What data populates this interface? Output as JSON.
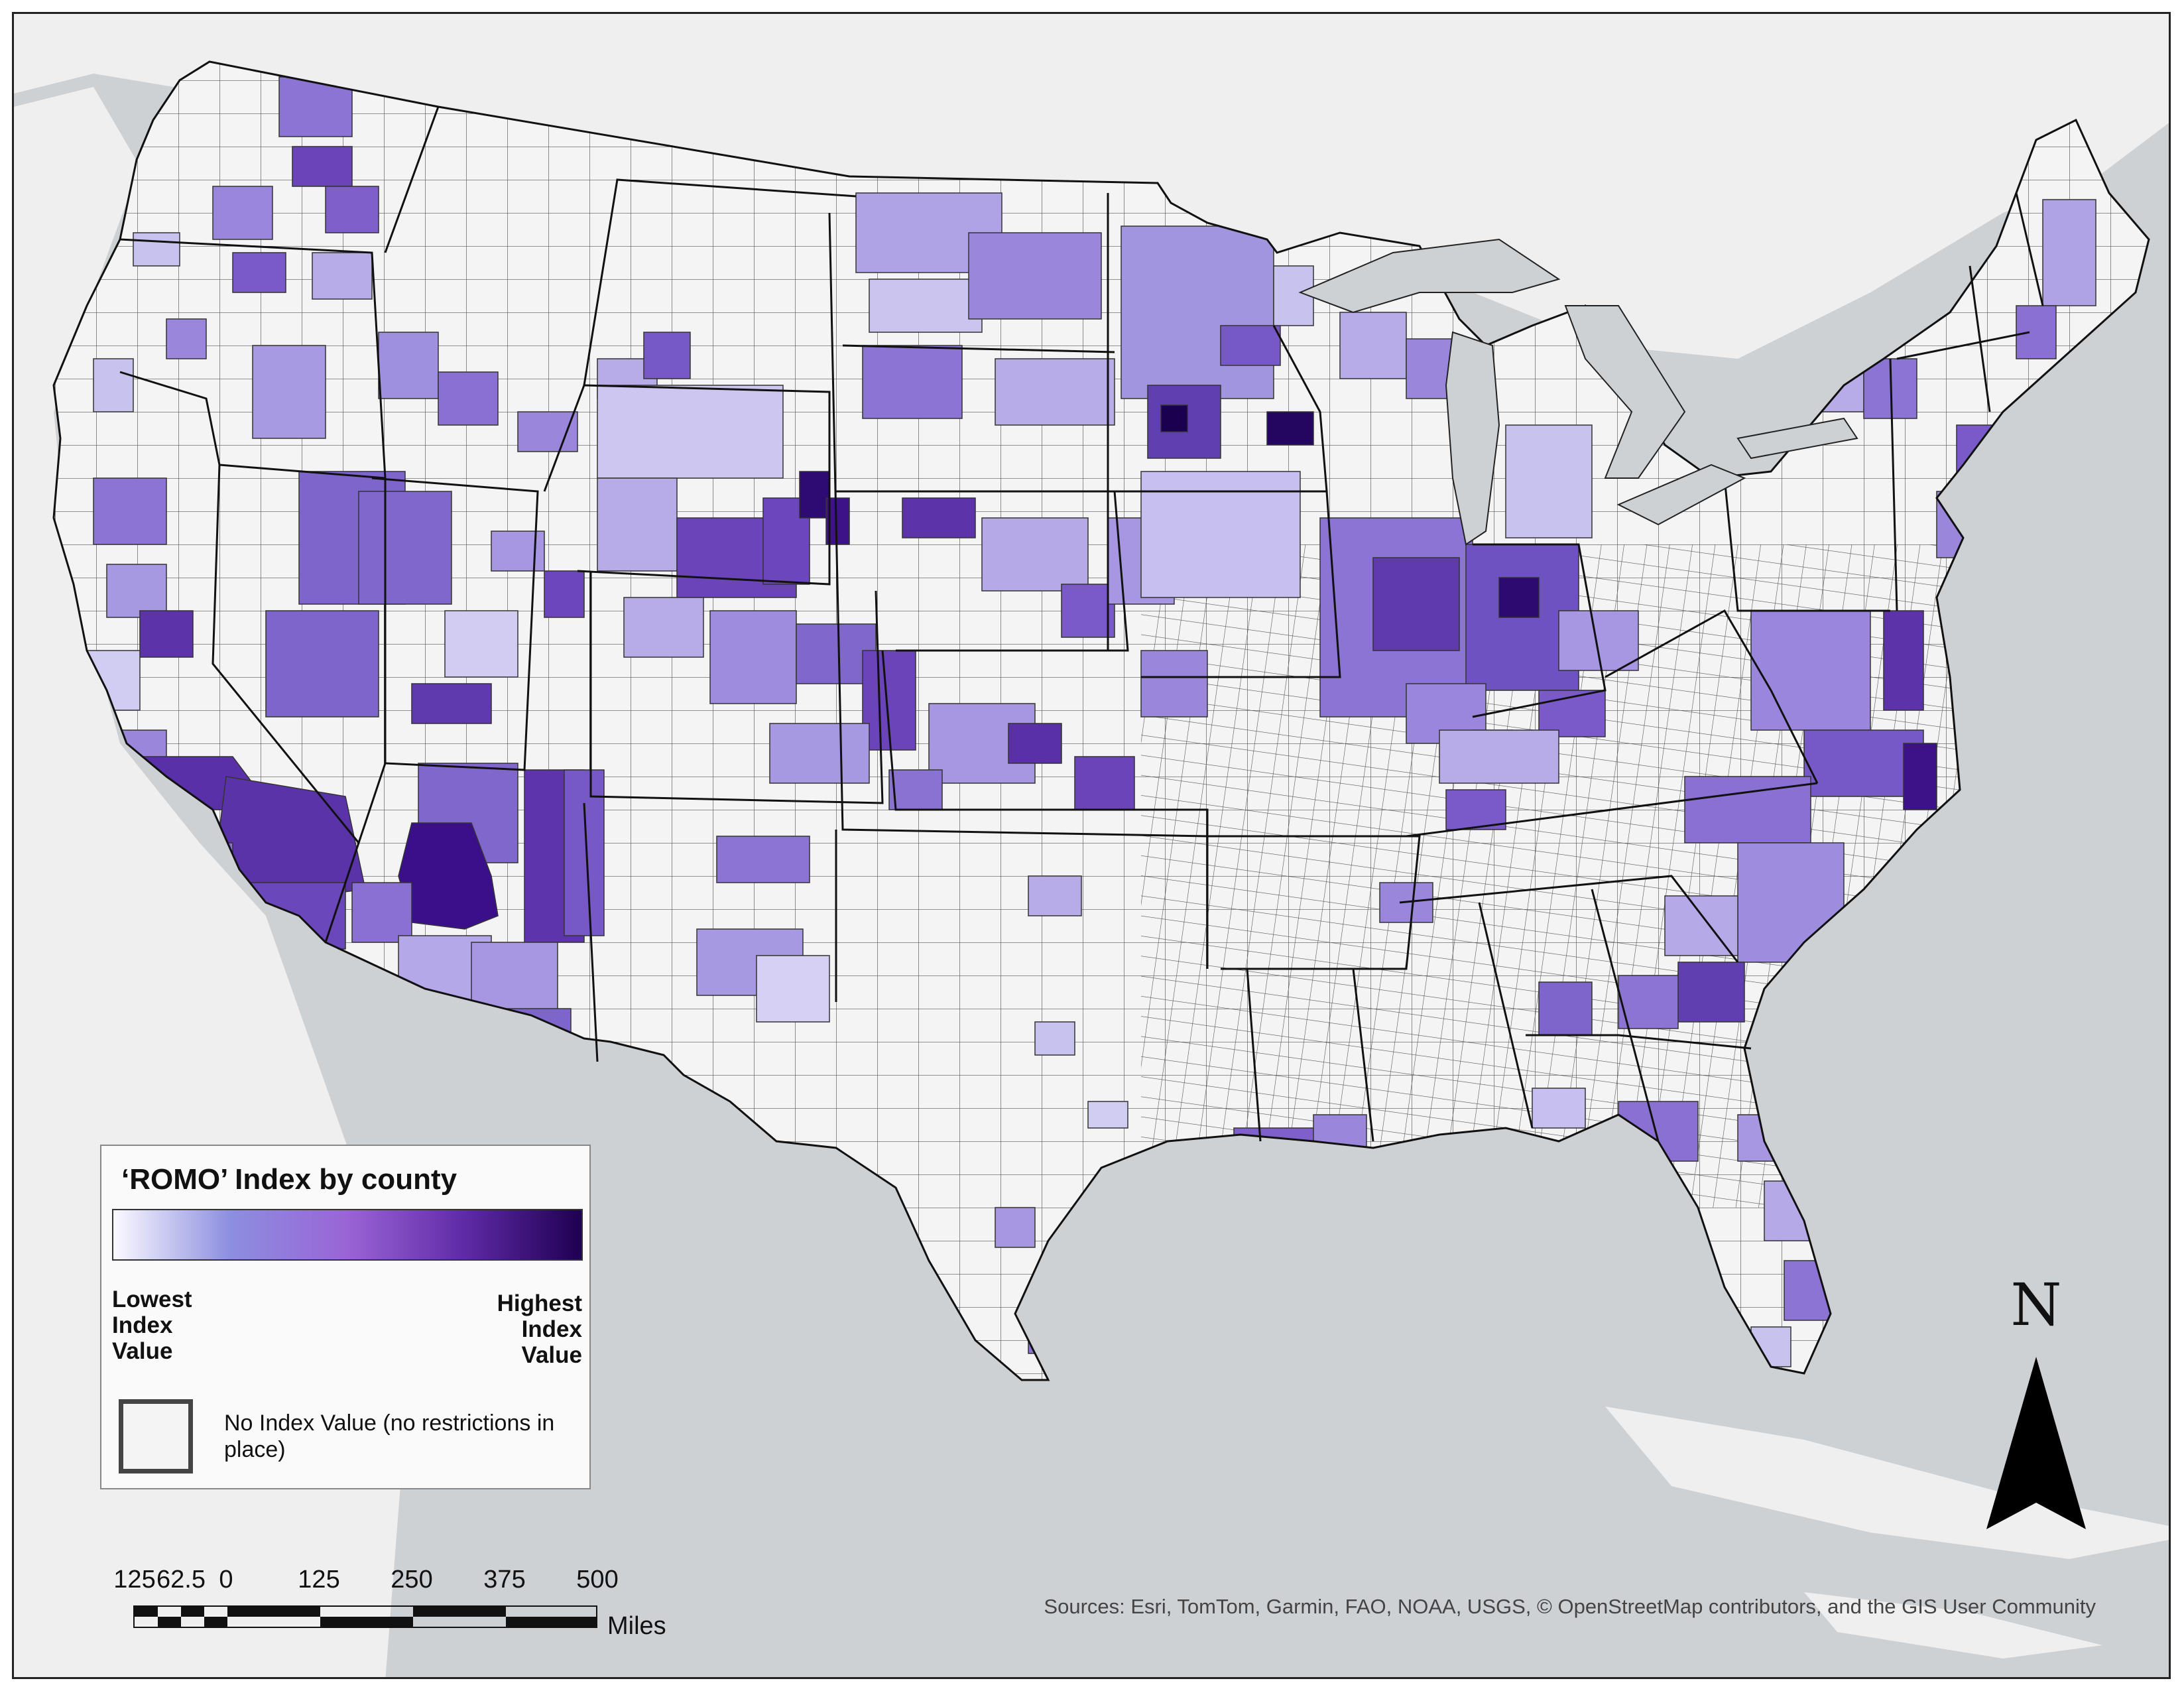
{
  "map": {
    "background_color": "#cdd1d4",
    "land_color": "#efefef",
    "nodata_fill": "#f4f4f4",
    "county_border_color": "#333333",
    "state_border_color": "#000000",
    "color_ramp": [
      "#fbf9ff",
      "#8c8ee0",
      "#9a64d6",
      "#5f2aa6",
      "#1f0052"
    ],
    "dominant_high_regions": [
      "Central Arizona",
      "Southern California",
      "Wyoming",
      "Minnesota",
      "Indiana"
    ]
  },
  "legend": {
    "title": "‘ROMO’ Index by county",
    "low_label": [
      "Lowest",
      "Index",
      "Value"
    ],
    "high_label": [
      "Highest",
      "Index",
      "Value"
    ],
    "nodata_label": "No Index Value (no restrictions in place)"
  },
  "scalebar": {
    "ticks": [
      "125",
      "62.5",
      "0",
      "125",
      "250",
      "375",
      "500"
    ],
    "units": "Miles"
  },
  "north_arrow": {
    "label": "N",
    "icon": "north-arrow-icon"
  },
  "attribution": "Sources: Esri, TomTom, Garmin, FAO, NOAA, USGS, © OpenStreetMap contributors, and the GIS User Community"
}
